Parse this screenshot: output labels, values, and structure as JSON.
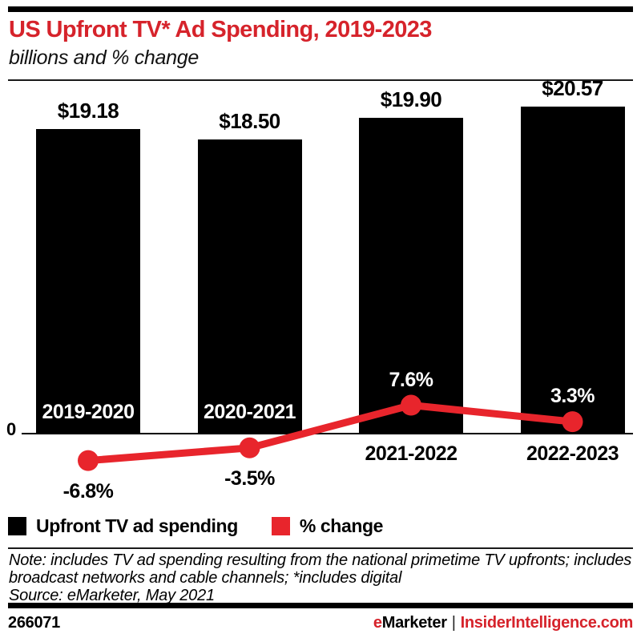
{
  "header": {
    "title": "US Upfront TV* Ad Spending, 2019-2023",
    "subtitle": "billions and % change"
  },
  "chart_data": {
    "type": "bar",
    "subtype": "bar-line-combo",
    "title": "US Upfront TV* Ad Spending, 2019-2023",
    "subtitle": "billions and % change",
    "categories": [
      "2019-2020",
      "2020-2021",
      "2021-2022",
      "2022-2023"
    ],
    "series": [
      {
        "name": "Upfront TV ad spending",
        "type": "bar",
        "unit": "billions USD",
        "values": [
          19.18,
          18.5,
          19.9,
          20.57
        ],
        "labels": [
          "$19.18",
          "$18.50",
          "$19.90",
          "$20.57"
        ],
        "color": "#000000"
      },
      {
        "name": "% change",
        "type": "line",
        "unit": "percent",
        "values": [
          -6.8,
          -3.5,
          7.6,
          3.3
        ],
        "labels": [
          "-6.8%",
          "-3.5%",
          "7.6%",
          "3.3%"
        ],
        "color": "#e8252c"
      }
    ],
    "axis": {
      "zero_label": "0"
    },
    "bar_ylim": [
      0,
      21
    ],
    "grid": false,
    "legend_position": "bottom"
  },
  "note": {
    "note_text": "Note: includes TV ad spending resulting from the national primetime TV upfronts; includes broadcast networks and cable channels; *includes digital",
    "source_text": "Source: eMarketer, May 2021"
  },
  "footer": {
    "chart_id": "266071",
    "brand_first_letter": "e",
    "brand_rest": "Marketer",
    "separator": "|",
    "site": "InsiderIntelligence.com"
  },
  "colors": {
    "title_red": "#d6232b",
    "accent_red": "#e8252c",
    "bar_black": "#000000",
    "background": "#ffffff"
  }
}
